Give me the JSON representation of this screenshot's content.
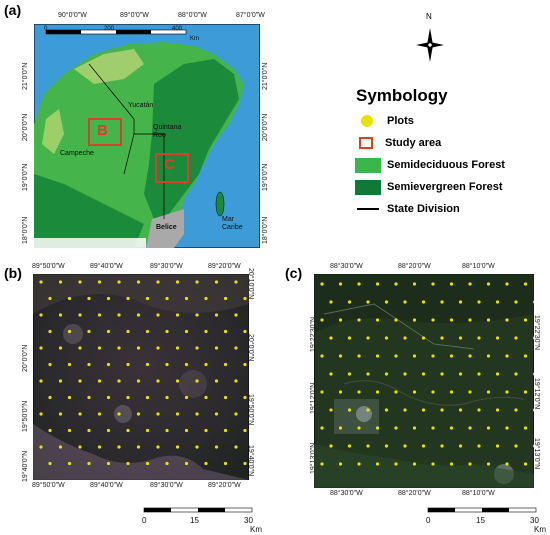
{
  "panels": {
    "a": {
      "label": "(a)",
      "top_ticks": [
        "90°0'0\"W",
        "89°0'0\"W",
        "88°0'0\"W",
        "87°0'0\"W"
      ],
      "lat_ticks": [
        "21°0'0\"N",
        "20°0'0\"N",
        "19°0'0\"N",
        "18°0'0\"N"
      ],
      "scale": [
        "0",
        "200",
        "400",
        "Km"
      ],
      "places": {
        "yucatan": "Yucatán",
        "campeche": "Campeche",
        "quintana": "Quintana Roo",
        "belice": "Belice",
        "mar_caribe": "Mar Caribe"
      },
      "boxes": {
        "b": "B",
        "c": "C"
      }
    },
    "b": {
      "label": "(b)",
      "top_ticks": [
        "89°50'0\"W",
        "89°40'0\"W",
        "89°30'0\"W",
        "89°20'0\"W"
      ],
      "lat_ticks": [
        "20°10'0\"N",
        "20°0'0\"N",
        "19°50'0\"N",
        "19°40'0\"N"
      ],
      "scale": [
        "0",
        "15",
        "30",
        "Km"
      ]
    },
    "c": {
      "label": "(c)",
      "top_ticks": [
        "88°30'0\"W",
        "88°20'0\"W",
        "88°10'0\"W"
      ],
      "lat_ticks": [
        "19°22'30\"N",
        "19°12'0\"N",
        "19°13'0\"N"
      ],
      "scale": [
        "0",
        "15",
        "30",
        "Km"
      ]
    }
  },
  "north_arrow": "N",
  "legend": {
    "title": "Symbology",
    "items": [
      {
        "label": "Plots",
        "symbol": "dot",
        "color": "#e8e200"
      },
      {
        "label": "Study area",
        "symbol": "box",
        "color": "#d8402a"
      },
      {
        "label": "Semideciduous Forest",
        "symbol": "fill",
        "color": "#3cb54a"
      },
      {
        "label": "Semievergreen Forest",
        "symbol": "fill",
        "color": "#0f7a35"
      },
      {
        "label": "State Division",
        "symbol": "line",
        "color": "#000000"
      }
    ]
  },
  "colors": {
    "sea": "#3d9bd8",
    "land_light": "#45b44a",
    "land_dark": "#1b8a3a",
    "belize": "#a9a9a9",
    "box": "#d8402a",
    "plot": "#e8e200"
  }
}
